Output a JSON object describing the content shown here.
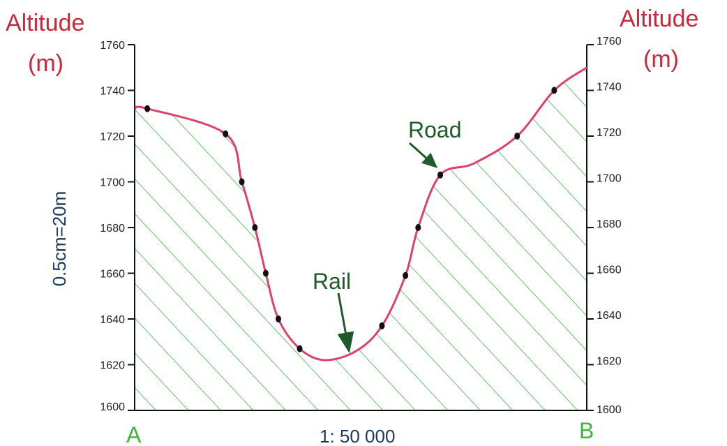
{
  "colors": {
    "profile_line": "#e0406e",
    "hatch": "#3ab53a",
    "axis_title": "#c8283c",
    "annotation": "#1f5a2a",
    "vertical_scale": "#1d3a5c",
    "end_labels": "#3cb43c",
    "points": "#111111"
  },
  "chart_data": {
    "type": "line",
    "ylim": [
      1600,
      1760
    ],
    "y_ticks": [
      1600,
      1620,
      1640,
      1660,
      1680,
      1700,
      1720,
      1740,
      1760
    ],
    "x_range": [
      0,
      100
    ],
    "left_axis_title": [
      "Altitude",
      "(m)"
    ],
    "right_axis_title": [
      "Altitude",
      "(m)"
    ],
    "vertical_scale": "0.5cm=20m",
    "horizontal_scale": "1: 50 000",
    "start_label": "A",
    "end_label": "B",
    "series": [
      {
        "points": [
          {
            "x": 0,
            "y": 1732
          },
          {
            "x": 2.8,
            "y": 1732
          },
          {
            "x": 20.1,
            "y": 1721
          },
          {
            "x": 23.7,
            "y": 1700
          },
          {
            "x": 26.6,
            "y": 1680
          },
          {
            "x": 29.0,
            "y": 1660
          },
          {
            "x": 31.8,
            "y": 1640
          },
          {
            "x": 36.5,
            "y": 1627
          },
          {
            "x": 42.0,
            "y": 1622
          },
          {
            "x": 49.0,
            "y": 1626
          },
          {
            "x": 54.7,
            "y": 1637
          },
          {
            "x": 59.9,
            "y": 1659
          },
          {
            "x": 62.7,
            "y": 1680
          },
          {
            "x": 67.6,
            "y": 1703
          },
          {
            "x": 75.0,
            "y": 1708
          },
          {
            "x": 84.6,
            "y": 1720
          },
          {
            "x": 92.8,
            "y": 1740
          },
          {
            "x": 100.0,
            "y": 1750
          }
        ],
        "markers": [
          2.8,
          20.1,
          23.7,
          26.6,
          29.0,
          31.8,
          36.5,
          54.7,
          59.9,
          62.7,
          67.6,
          84.6,
          92.8
        ]
      }
    ],
    "annotations": [
      {
        "text": "Rail",
        "target": {
          "x": 47.5,
          "y": 1625
        }
      },
      {
        "text": "Road",
        "target": {
          "x": 67.0,
          "y": 1706
        }
      }
    ]
  }
}
